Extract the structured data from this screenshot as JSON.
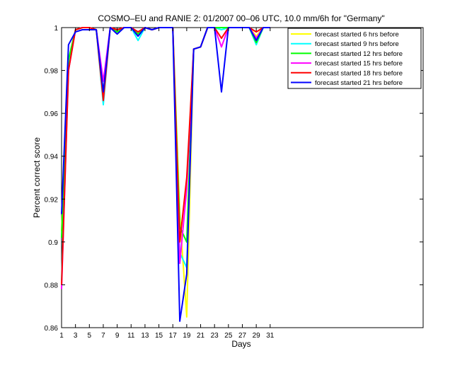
{
  "chart_data": {
    "type": "line",
    "title": "COSMO–EU and RANIE 2: 01/2007 00–06 UTC, 10.0 mm/6h for \"Germany\"",
    "xlabel": "Days",
    "ylabel": "Percent correct score",
    "xlim": [
      1,
      53
    ],
    "ylim": [
      0.86,
      1.0
    ],
    "xticks": [
      1,
      3,
      5,
      7,
      9,
      11,
      13,
      15,
      17,
      19,
      21,
      23,
      25,
      27,
      29,
      31
    ],
    "yticks": [
      0.86,
      0.88,
      0.9,
      0.92,
      0.94,
      0.96,
      0.98,
      1
    ],
    "ytick_labels": [
      "0.86",
      "0.88",
      "0.9",
      "0.92",
      "0.94",
      "0.96",
      "0.98",
      "1"
    ],
    "grid": false,
    "legend_position": "top-right",
    "x": [
      1,
      2,
      3,
      4,
      5,
      6,
      7,
      8,
      9,
      10,
      11,
      12,
      13,
      14,
      15,
      16,
      17,
      18,
      19,
      20,
      21,
      22,
      23,
      24,
      25,
      26,
      27,
      28,
      29,
      30,
      31
    ],
    "series": [
      {
        "name": "forecast started 6 hrs before",
        "color": "#ffff00",
        "values": [
          0.905,
          0.985,
          0.999,
          1.0,
          1.0,
          0.999,
          0.97,
          1.0,
          0.999,
          1.0,
          1.0,
          0.998,
          1.0,
          0.999,
          1.0,
          1.0,
          1.0,
          0.913,
          0.865,
          0.99,
          0.991,
          1.0,
          1.0,
          1.0,
          1.0,
          1.0,
          1.0,
          1.0,
          0.996,
          1.0,
          1.0
        ]
      },
      {
        "name": "forecast started 9 hrs before",
        "color": "#00ffff",
        "values": [
          0.882,
          0.982,
          0.999,
          1.0,
          1.0,
          0.999,
          0.964,
          1.0,
          0.999,
          1.0,
          1.0,
          0.994,
          1.0,
          0.999,
          1.0,
          1.0,
          1.0,
          0.895,
          0.888,
          0.99,
          0.991,
          1.0,
          1.0,
          0.999,
          1.0,
          1.0,
          1.0,
          1.0,
          0.992,
          1.0,
          1.0
        ]
      },
      {
        "name": "forecast started 12 hrs before",
        "color": "#00ff00",
        "values": [
          0.902,
          0.985,
          0.999,
          1.0,
          1.0,
          0.999,
          0.968,
          1.0,
          0.998,
          1.0,
          1.0,
          0.997,
          1.0,
          0.999,
          1.0,
          1.0,
          1.0,
          0.907,
          0.9,
          0.99,
          0.991,
          1.0,
          1.0,
          1.0,
          1.0,
          1.0,
          1.0,
          1.0,
          0.993,
          1.0,
          1.0
        ]
      },
      {
        "name": "forecast started 15 hrs before",
        "color": "#ff00ff",
        "values": [
          0.878,
          0.98,
          0.999,
          1.0,
          1.0,
          0.999,
          0.975,
          1.0,
          0.999,
          1.0,
          1.0,
          0.998,
          1.0,
          0.999,
          1.0,
          1.0,
          1.0,
          0.89,
          0.925,
          0.99,
          0.991,
          1.0,
          1.0,
          0.991,
          1.0,
          1.0,
          1.0,
          1.0,
          0.995,
          1.0,
          1.0
        ]
      },
      {
        "name": "forecast started 18 hrs before",
        "color": "#ff0000",
        "values": [
          0.88,
          0.98,
          0.999,
          1.0,
          1.0,
          0.999,
          0.966,
          1.0,
          0.999,
          1.0,
          1.0,
          0.998,
          1.0,
          0.999,
          1.0,
          1.0,
          1.0,
          0.9,
          0.93,
          0.99,
          0.991,
          1.0,
          1.0,
          0.995,
          1.0,
          1.0,
          1.0,
          1.0,
          0.998,
          1.0,
          1.0
        ]
      },
      {
        "name": "forecast started 21 hrs before",
        "color": "#0000ff",
        "values": [
          0.913,
          0.992,
          0.998,
          0.999,
          0.999,
          0.999,
          0.97,
          1.0,
          0.997,
          1.0,
          1.0,
          0.996,
          1.0,
          0.999,
          1.0,
          1.0,
          1.0,
          0.863,
          0.885,
          0.99,
          0.991,
          1.0,
          1.0,
          0.97,
          1.0,
          1.0,
          1.0,
          1.0,
          0.994,
          1.0,
          1.0
        ]
      }
    ]
  }
}
